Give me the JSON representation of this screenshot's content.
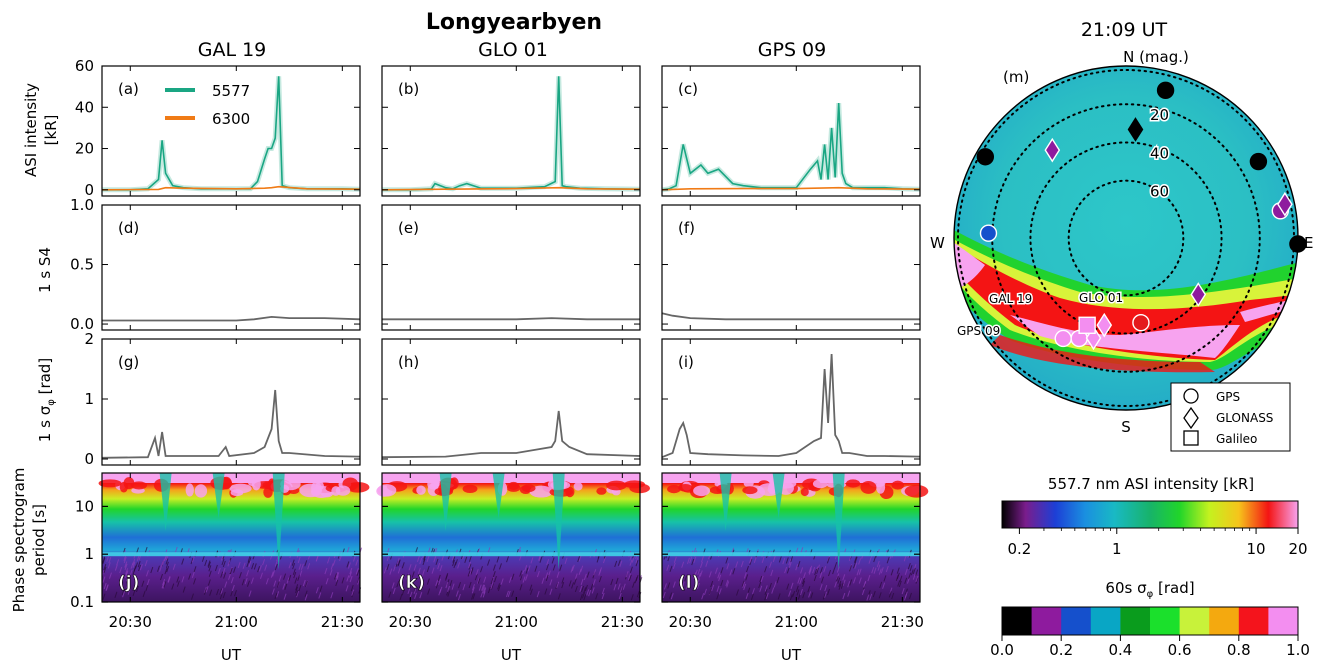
{
  "figure": {
    "station_title": "Longyearbyen",
    "x_axis_label": "UT",
    "x_tick_labels": [
      "20:30",
      "21:00",
      "21:30"
    ],
    "columns": [
      "GAL 19",
      "GLO 01",
      "GPS 09"
    ],
    "row_ylabels": {
      "asi": "ASI intensity\n[kR]",
      "s4": "1 s S4",
      "sigma": "1 s σ",
      "sigma_sub": "φ",
      "sigma_unit": "[rad]",
      "spec": "Phase spectrogram\nperiod [s]"
    },
    "panel_letters": [
      "(a)",
      "(b)",
      "(c)",
      "(d)",
      "(e)",
      "(f)",
      "(g)",
      "(h)",
      "(i)",
      "(j)",
      "(k)",
      "(l)"
    ],
    "legend": [
      {
        "label": "5577",
        "color": "#1aa683"
      },
      {
        "label": "6300",
        "color": "#f07b16"
      }
    ]
  },
  "chart_data": [
    {
      "type": "line",
      "row": "asi",
      "ylim": [
        -3,
        60
      ],
      "yticks": [
        0,
        20,
        40,
        60
      ],
      "xlim": [
        "20:22",
        "21:35"
      ],
      "panels": [
        {
          "letter": "(a)",
          "satellite": "GAL 19",
          "series": [
            {
              "name": "5577",
              "x": [
                "20:22",
                "20:30",
                "20:35",
                "20:38",
                "20:39",
                "20:40",
                "20:42",
                "20:45",
                "20:50",
                "20:55",
                "21:00",
                "21:04",
                "21:06",
                "21:08",
                "21:09",
                "21:10",
                "21:11",
                "21:12",
                "21:13",
                "21:15",
                "21:20",
                "21:25",
                "21:30",
                "21:35"
              ],
              "y": [
                0,
                0,
                0.5,
                5,
                24,
                8,
                2,
                1,
                0.5,
                0.5,
                0.5,
                0.5,
                4,
                15,
                20,
                20,
                25,
                55,
                2,
                1,
                0.5,
                0.5,
                0.5,
                0.3
              ]
            },
            {
              "name": "6300",
              "x": [
                "20:22",
                "20:38",
                "20:40",
                "20:45",
                "21:00",
                "21:08",
                "21:10",
                "21:12",
                "21:20",
                "21:35"
              ],
              "y": [
                0,
                0.2,
                1,
                0.8,
                0.5,
                0.8,
                1,
                1.5,
                0.5,
                0.3
              ]
            }
          ]
        },
        {
          "letter": "(b)",
          "satellite": "GLO 01",
          "series": [
            {
              "name": "5577",
              "x": [
                "20:22",
                "20:30",
                "20:36",
                "20:37",
                "20:40",
                "20:42",
                "20:44",
                "20:46",
                "20:50",
                "21:00",
                "21:08",
                "21:11",
                "21:12",
                "21:13",
                "21:14",
                "21:18",
                "21:25",
                "21:35"
              ],
              "y": [
                0,
                0,
                0.5,
                3,
                1,
                0.5,
                2,
                3,
                0.8,
                0.8,
                1.5,
                4,
                55,
                2,
                1.5,
                0.8,
                0.5,
                0.3
              ]
            },
            {
              "name": "6300",
              "x": [
                "20:22",
                "20:40",
                "21:00",
                "21:12",
                "21:20",
                "21:35"
              ],
              "y": [
                0,
                0.3,
                0.6,
                1,
                0.5,
                0.3
              ]
            }
          ]
        },
        {
          "letter": "(c)",
          "satellite": "GPS 09",
          "series": [
            {
              "name": "5577",
              "x": [
                "20:22",
                "20:24",
                "20:26",
                "20:28",
                "20:30",
                "20:33",
                "20:35",
                "20:38",
                "20:42",
                "20:45",
                "20:50",
                "20:55",
                "21:00",
                "21:04",
                "21:06",
                "21:07",
                "21:08",
                "21:09",
                "21:10",
                "21:11",
                "21:12",
                "21:13",
                "21:14",
                "21:16",
                "21:20",
                "21:25",
                "21:30",
                "21:35"
              ],
              "y": [
                0,
                0.5,
                2,
                22,
                8,
                12,
                8,
                10,
                3,
                2,
                1,
                1,
                1,
                10,
                14,
                5,
                22,
                5,
                30,
                6,
                42,
                8,
                3,
                1,
                1,
                1,
                0.5,
                0.3
              ]
            },
            {
              "name": "6300",
              "x": [
                "20:22",
                "20:30",
                "20:45",
                "21:00",
                "21:12",
                "21:20",
                "21:35"
              ],
              "y": [
                0,
                0.5,
                0.6,
                0.6,
                1,
                0.5,
                0.3
              ]
            }
          ]
        }
      ]
    },
    {
      "type": "line",
      "row": "s4",
      "ylim": [
        -0.05,
        1.0
      ],
      "yticks": [
        0.0,
        0.5,
        1.0
      ],
      "ytick_labels": [
        "0.0",
        "0.5",
        "1.0"
      ],
      "panels": [
        {
          "letter": "(d)",
          "satellite": "GAL 19",
          "series": [
            {
              "x": [
                "20:22",
                "21:00",
                "21:05",
                "21:10",
                "21:15",
                "21:25",
                "21:35"
              ],
              "y": [
                0.03,
                0.03,
                0.04,
                0.06,
                0.05,
                0.05,
                0.04
              ]
            }
          ]
        },
        {
          "letter": "(e)",
          "satellite": "GLO 01",
          "series": [
            {
              "x": [
                "20:22",
                "20:40",
                "21:00",
                "21:10",
                "21:20",
                "21:35"
              ],
              "y": [
                0.04,
                0.04,
                0.04,
                0.05,
                0.04,
                0.04
              ]
            }
          ]
        },
        {
          "letter": "(f)",
          "satellite": "GPS 09",
          "series": [
            {
              "x": [
                "20:22",
                "20:25",
                "20:30",
                "20:40",
                "21:00",
                "21:20",
                "21:35"
              ],
              "y": [
                0.09,
                0.07,
                0.05,
                0.04,
                0.04,
                0.04,
                0.04
              ]
            }
          ]
        }
      ]
    },
    {
      "type": "line",
      "row": "sigma",
      "ylim": [
        -0.1,
        2.0
      ],
      "yticks": [
        0,
        1,
        2
      ],
      "panels": [
        {
          "letter": "(g)",
          "satellite": "GAL 19",
          "series": [
            {
              "x": [
                "20:22",
                "20:35",
                "20:37",
                "20:38",
                "20:39",
                "20:40",
                "20:45",
                "20:55",
                "20:57",
                "20:58",
                "21:05",
                "21:08",
                "21:10",
                "21:11",
                "21:12",
                "21:13",
                "21:15",
                "21:25",
                "21:35"
              ],
              "y": [
                0.02,
                0.03,
                0.35,
                0.05,
                0.45,
                0.05,
                0.05,
                0.05,
                0.2,
                0.05,
                0.1,
                0.2,
                0.5,
                1.15,
                0.3,
                0.1,
                0.1,
                0.05,
                0.04
              ]
            }
          ]
        },
        {
          "letter": "(h)",
          "satellite": "GLO 01",
          "series": [
            {
              "x": [
                "20:22",
                "20:40",
                "20:50",
                "21:00",
                "21:05",
                "21:10",
                "21:11",
                "21:12",
                "21:13",
                "21:15",
                "21:20",
                "21:35"
              ],
              "y": [
                0.03,
                0.04,
                0.1,
                0.1,
                0.15,
                0.2,
                0.3,
                0.8,
                0.3,
                0.2,
                0.08,
                0.05
              ]
            }
          ]
        },
        {
          "letter": "(i)",
          "satellite": "GPS 09",
          "series": [
            {
              "x": [
                "20:22",
                "20:25",
                "20:27",
                "20:28",
                "20:29",
                "20:30",
                "20:35",
                "20:45",
                "20:55",
                "21:00",
                "21:05",
                "21:07",
                "21:08",
                "21:09",
                "21:10",
                "21:11",
                "21:12",
                "21:13",
                "21:15",
                "21:20",
                "21:25",
                "21:35"
              ],
              "y": [
                0.03,
                0.1,
                0.5,
                0.6,
                0.4,
                0.1,
                0.08,
                0.06,
                0.05,
                0.1,
                0.3,
                0.35,
                1.5,
                0.6,
                1.75,
                0.4,
                0.3,
                0.1,
                0.1,
                0.05,
                0.05,
                0.04
              ]
            }
          ]
        }
      ]
    },
    {
      "type": "heatmap",
      "row": "spectrogram",
      "y_scale": "log",
      "ylim": [
        0.1,
        50
      ],
      "yticks": [
        0.1,
        1,
        10
      ],
      "ytick_labels": [
        "0.1",
        "1",
        "10"
      ],
      "panels": [
        {
          "letter": "(j)",
          "satellite": "GAL 19"
        },
        {
          "letter": "(k)",
          "satellite": "GLO 01"
        },
        {
          "letter": "(l)",
          "satellite": "GPS 09"
        }
      ]
    },
    {
      "type": "scatter",
      "row": "sky_map",
      "time_title": "21:09 UT",
      "panel_letter": "(m)",
      "compass": {
        "N": "N (mag.)",
        "E": "E",
        "S": "S",
        "W": "W"
      },
      "elevation_rings": [
        20,
        40,
        60
      ],
      "ring_labels": [
        "20",
        "40",
        "60"
      ],
      "highlight_labels": [
        "GAL 19",
        "GLO 01",
        "GPS 09"
      ],
      "satellites": [
        {
          "system": "GPS",
          "az": 15,
          "el": 10,
          "color": "#000000"
        },
        {
          "system": "GPS",
          "az": 300,
          "el": 5,
          "color": "#000000"
        },
        {
          "system": "GPS",
          "az": 60,
          "el": 10,
          "color": "#000000"
        },
        {
          "system": "GPS",
          "az": 92,
          "el": 0,
          "color": "#000000"
        },
        {
          "system": "GPS",
          "az": 80,
          "el": 8,
          "color": "#8e1b9e"
        },
        {
          "system": "GPS",
          "az": 272,
          "el": 18,
          "color": "#1550cc"
        },
        {
          "system": "GPS",
          "az": 170,
          "el": 45,
          "color": "#e41a1c"
        },
        {
          "system": "GPS",
          "az": 212,
          "el": 28,
          "color": "#f38ef0"
        },
        {
          "system": "GPS",
          "az": 205,
          "el": 32,
          "color": "#f38ef0"
        },
        {
          "system": "GLONASS",
          "az": 5,
          "el": 33,
          "color": "#000000"
        },
        {
          "system": "GLONASS",
          "az": 320,
          "el": 30,
          "color": "#8e1b9e"
        },
        {
          "system": "GLONASS",
          "az": 128,
          "el": 42,
          "color": "#8e1b9e"
        },
        {
          "system": "GLONASS",
          "az": 78,
          "el": 5,
          "color": "#8e1b9e"
        },
        {
          "system": "GLONASS",
          "az": 194,
          "el": 43,
          "color": "#f38ef0"
        },
        {
          "system": "GLONASS",
          "az": 198,
          "el": 35,
          "color": "#f38ef0"
        },
        {
          "system": "Galileo",
          "az": 204,
          "el": 40,
          "color": "#f38ef0"
        }
      ],
      "legend": [
        "GPS",
        "GLONASS",
        "Galileo"
      ]
    }
  ],
  "colorbars": {
    "asi": {
      "title": "557.7 nm ASI intensity [kR]",
      "scale": "log",
      "range": [
        0.15,
        20
      ],
      "tick_labels": [
        "0.2",
        "1",
        "10",
        "20"
      ]
    },
    "sigma": {
      "title": "60s σ",
      "sub": "φ",
      "unit": "[rad]",
      "range": [
        0.0,
        1.0
      ],
      "tick_labels": [
        "0.0",
        "0.2",
        "0.4",
        "0.6",
        "0.8",
        "1.0"
      ],
      "colors": [
        "#000000",
        "#8e1b9e",
        "#1550cc",
        "#09a6c5",
        "#0a9c1d",
        "#1be02c",
        "#c8f23a",
        "#f4a90f",
        "#f4141c",
        "#f38ef0"
      ]
    }
  }
}
